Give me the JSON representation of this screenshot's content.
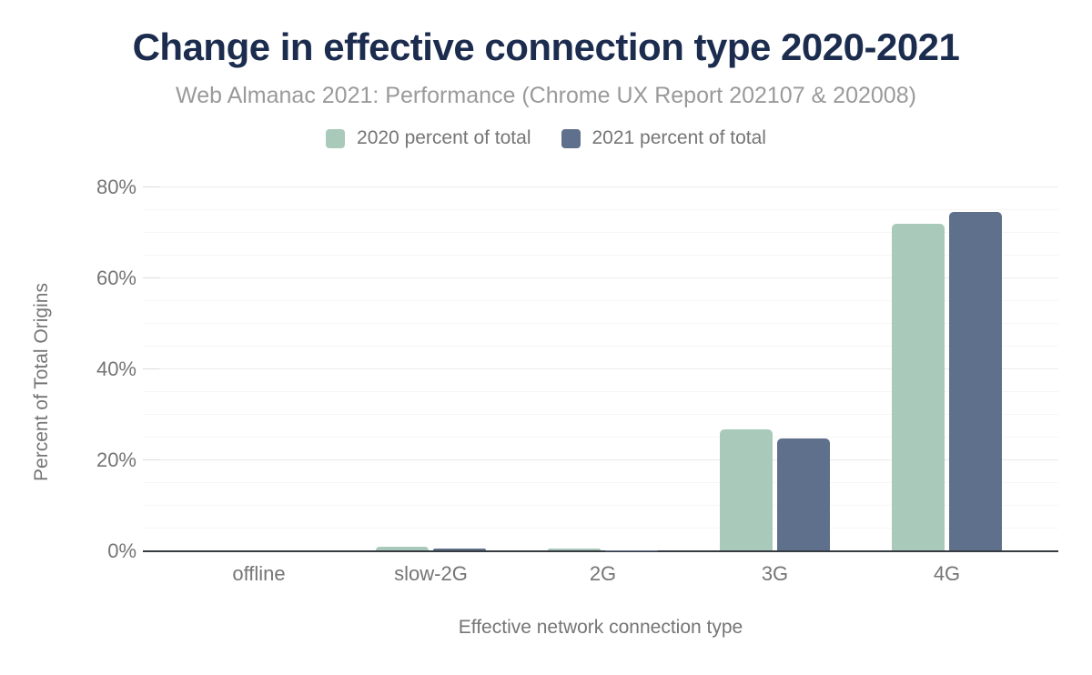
{
  "header": {
    "title": "Change in effective connection type 2020-2021",
    "subtitle": "Web Almanac 2021: Performance (Chrome UX Report 202107 & 202008)"
  },
  "legend": {
    "items": [
      {
        "label": "2020 percent of total",
        "color": "#a9caba"
      },
      {
        "label": "2021 percent of total",
        "color": "#5f708c"
      }
    ]
  },
  "chart_data": {
    "type": "bar",
    "title": "Change in effective connection type 2020-2021",
    "subtitle": "Web Almanac 2021: Performance (Chrome UX Report 202107 & 202008)",
    "categories": [
      "offline",
      "slow-2G",
      "2G",
      "3G",
      "4G"
    ],
    "series": [
      {
        "name": "2020 percent of total",
        "color": "#a9caba",
        "values": [
          0.0,
          0.8,
          0.5,
          26.7,
          71.8
        ]
      },
      {
        "name": "2021 percent of total",
        "color": "#5f708c",
        "values": [
          0.0,
          0.5,
          0.1,
          24.6,
          74.5
        ]
      }
    ],
    "xlabel": "Effective network connection type",
    "ylabel": "Percent of Total Origins",
    "ylim": [
      0,
      80
    ],
    "yticks": [
      0,
      20,
      40,
      60,
      80
    ],
    "ytick_labels": [
      "0%",
      "20%",
      "40%",
      "60%",
      "80%"
    ],
    "minor_grid_step": 5,
    "major_grid_step": 20,
    "grid": true,
    "legend_position": "top",
    "colors": {
      "title": "#1b2c4e",
      "subtitle": "#9a9a9a",
      "axis_text": "#757575",
      "grid_minor": "#f6f6f6",
      "grid_major": "#ececec",
      "baseline": "#363b42"
    }
  }
}
